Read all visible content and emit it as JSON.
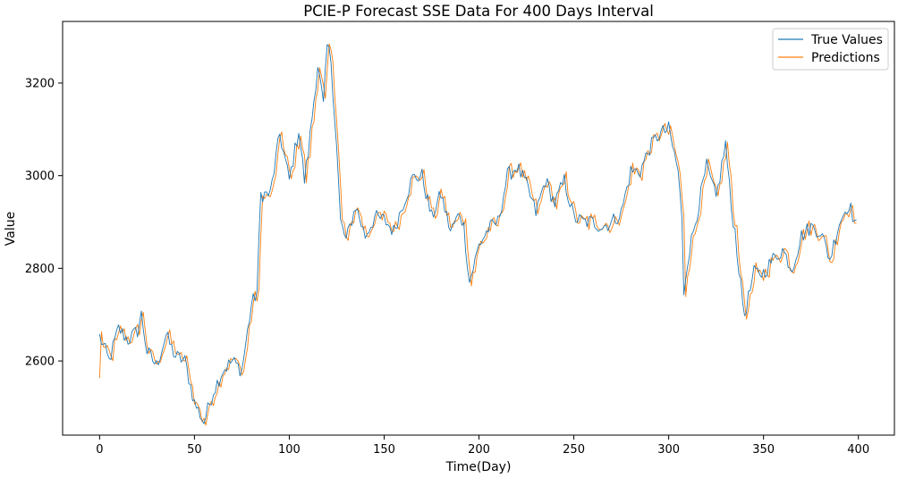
{
  "chart_data": {
    "type": "line",
    "title": "PCIE-P Forecast SSE Data For 400 Days Interval",
    "xlabel": "Time(Day)",
    "ylabel": "Value",
    "xlim": [
      -19.5,
      419
    ],
    "ylim": [
      2440,
      3333
    ],
    "xticks": [
      0,
      50,
      100,
      150,
      200,
      250,
      300,
      350,
      400
    ],
    "yticks": [
      2600,
      2800,
      3000,
      3200
    ],
    "grid": false,
    "legend": "top-right",
    "series": [
      {
        "name": "True Values",
        "color": "#1f77b4"
      },
      {
        "name": "Predictions",
        "color": "#ff7f0e"
      }
    ],
    "anchors": {
      "x": [
        0,
        5,
        10,
        15,
        20,
        22,
        25,
        30,
        35,
        40,
        45,
        50,
        55,
        60,
        65,
        70,
        75,
        80,
        83,
        85,
        90,
        95,
        100,
        105,
        108,
        110,
        115,
        118,
        120,
        122,
        125,
        127,
        130,
        135,
        140,
        145,
        150,
        155,
        160,
        165,
        170,
        175,
        180,
        185,
        190,
        192,
        195,
        200,
        205,
        210,
        215,
        220,
        225,
        230,
        235,
        240,
        245,
        250,
        255,
        260,
        265,
        270,
        275,
        280,
        285,
        290,
        295,
        300,
        305,
        307,
        308,
        310,
        315,
        320,
        325,
        330,
        333,
        335,
        338,
        340,
        345,
        350,
        355,
        360,
        365,
        370,
        375,
        380,
        385,
        390,
        395,
        399
      ],
      "y": [
        2653,
        2600,
        2670,
        2645,
        2665,
        2700,
        2620,
        2590,
        2655,
        2610,
        2600,
        2510,
        2468,
        2535,
        2580,
        2600,
        2580,
        2720,
        2750,
        2960,
        2960,
        3090,
        2990,
        3100,
        2990,
        3050,
        3240,
        3150,
        3280,
        3250,
        3060,
        2900,
        2860,
        2935,
        2870,
        2910,
        2905,
        2880,
        2940,
        2995,
        3000,
        2910,
        2960,
        2880,
        2920,
        2890,
        2770,
        2850,
        2885,
        2900,
        3000,
        3020,
        2980,
        2920,
        2990,
        2940,
        2990,
        2910,
        2900,
        2900,
        2890,
        2900,
        2920,
        3010,
        3010,
        3060,
        3090,
        3100,
        3010,
        2900,
        2750,
        2820,
        2920,
        3020,
        2950,
        3070,
        2930,
        2880,
        2760,
        2700,
        2790,
        2790,
        2820,
        2840,
        2800,
        2870,
        2890,
        2880,
        2820,
        2900,
        2940,
        2890
      ]
    }
  }
}
